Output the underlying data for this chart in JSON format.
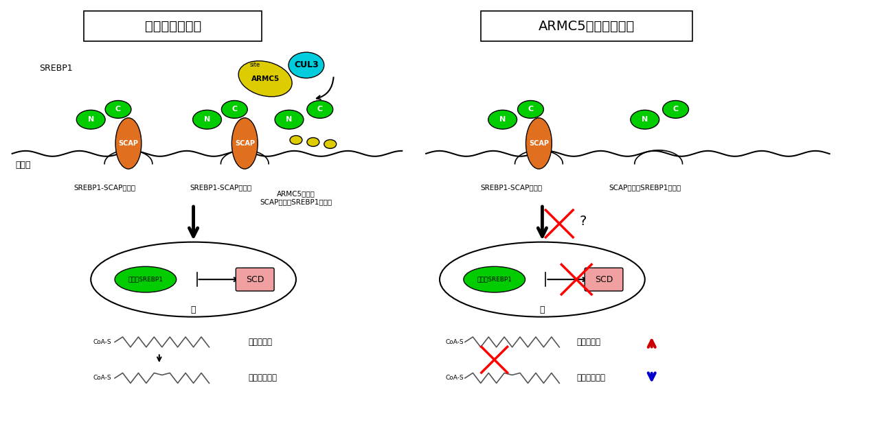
{
  "title_left": "野生型脂肪細胞",
  "title_right": "ARMC5欠損脂肪細胞",
  "bg_color": "#ffffff",
  "label_srebp1": "SREBP1",
  "label_armc5": "ARMC5",
  "label_cul3": "CUL3",
  "label_scap": "SCAP",
  "label_kotai": "小胞体",
  "label_complex_left": "SREBP1-SCAP複合体",
  "label_deg_left": "ARMC5による\nSCAP非結合SREBP1の分解",
  "label_complex_right": "SREBP1-SCAP複合体",
  "label_accum_right": "SCAP非結合SREBP1の蓄積",
  "label_nucleus": "核",
  "label_nuclear_srebp1": "核内型SREBP1",
  "label_scd": "SCD",
  "label_sat": "飽和脂肪酸",
  "label_unsat": "不飽和脂肪酸",
  "green_color": "#00cc00",
  "orange_color": "#e07020",
  "yellow_color": "#ddcc00",
  "cyan_color": "#00ccdd",
  "pink_color": "#f0a0a0",
  "red_arrow_color": "#cc0000",
  "blue_arrow_color": "#0000cc"
}
